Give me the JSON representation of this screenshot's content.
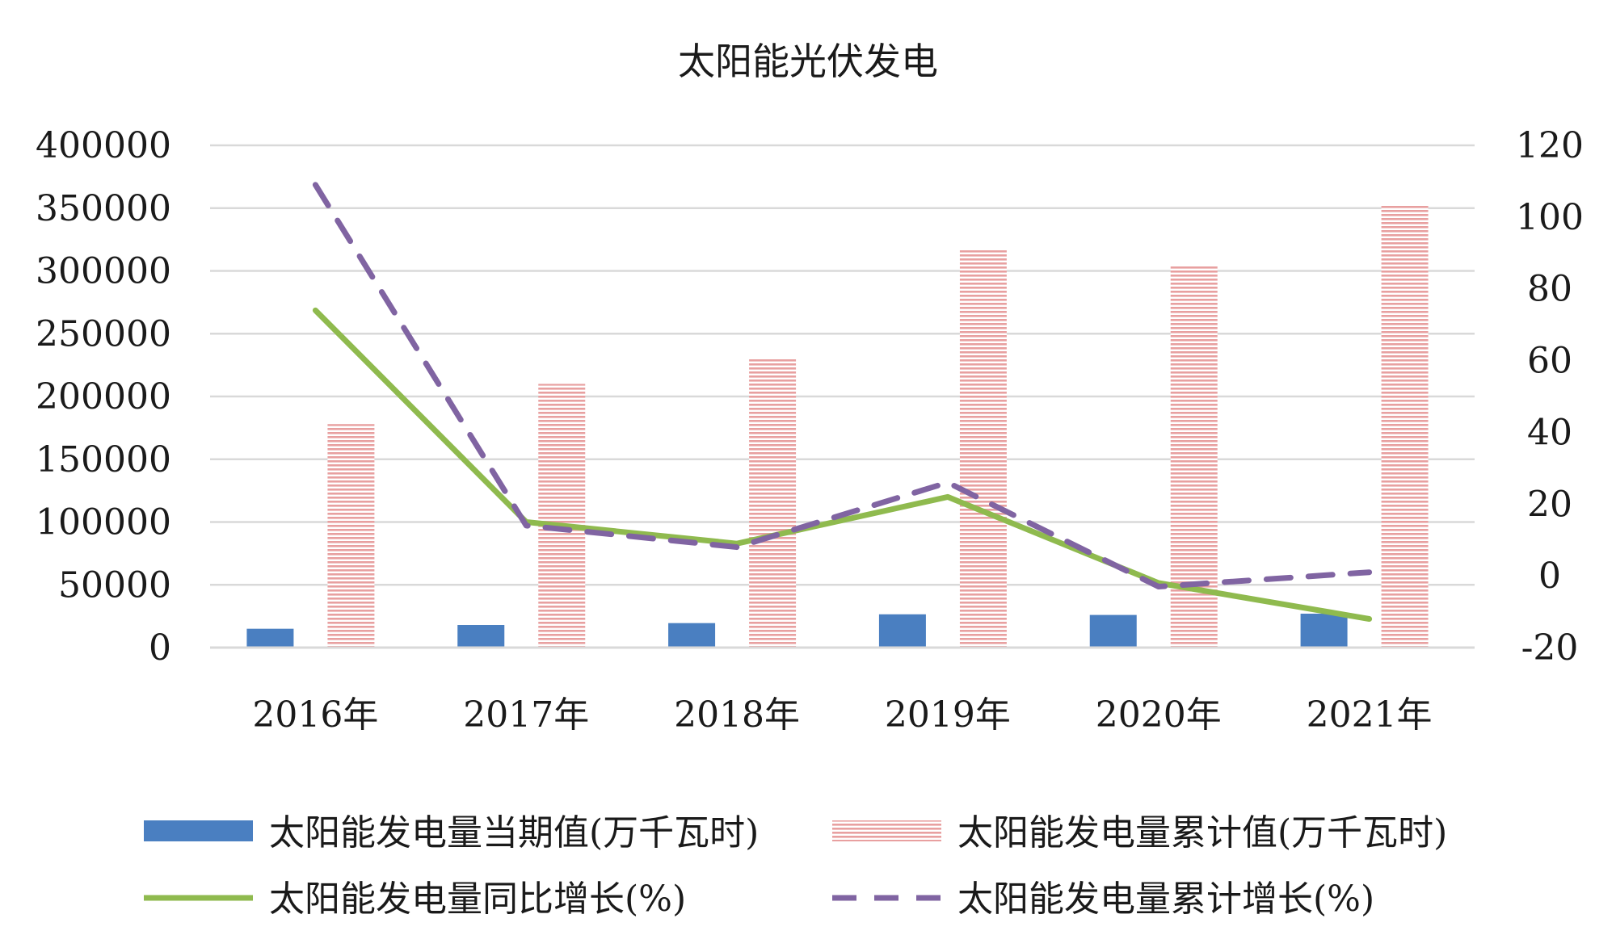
{
  "chart_data": {
    "type": "bar",
    "title": "太阳能光伏发电",
    "categories": [
      "2016年",
      "2017年",
      "2018年",
      "2019年",
      "2020年",
      "2021年"
    ],
    "left_axis": {
      "ylim": [
        0,
        400000
      ],
      "ticks": [
        "400000",
        "350000",
        "300000",
        "250000",
        "200000",
        "150000",
        "100000",
        "50000",
        "0"
      ],
      "tick_values": [
        400000,
        350000,
        300000,
        250000,
        200000,
        150000,
        100000,
        50000,
        0
      ]
    },
    "right_axis": {
      "ylim": [
        -20,
        120
      ],
      "ticks": [
        "120",
        "100",
        "80",
        "60",
        "40",
        "20",
        "0",
        "-20"
      ],
      "tick_values": [
        120,
        100,
        80,
        60,
        40,
        20,
        0,
        -20
      ]
    },
    "grid": true,
    "legend_position": "bottom",
    "series": [
      {
        "name": "太阳能发电量当期值(万千瓦时)",
        "type": "bar",
        "axis": "left",
        "color": "#4a7fc1",
        "values": [
          15000,
          18000,
          19500,
          26500,
          26000,
          27000
        ]
      },
      {
        "name": "太阳能发电量累计值(万千瓦时)",
        "type": "bar",
        "axis": "left",
        "color": "#e8a0a0",
        "values": [
          178000,
          210000,
          230000,
          317000,
          304000,
          353000
        ]
      },
      {
        "name": "太阳能发电量同比增长(%)",
        "type": "line",
        "axis": "right",
        "color": "#8fba4e",
        "values": [
          74,
          15,
          9,
          22,
          -2,
          -12
        ]
      },
      {
        "name": "太阳能发电量累计增长(%)",
        "type": "line-dashed",
        "axis": "right",
        "color": "#8064a2",
        "values": [
          109,
          14,
          8,
          26,
          -3,
          1
        ]
      }
    ]
  }
}
